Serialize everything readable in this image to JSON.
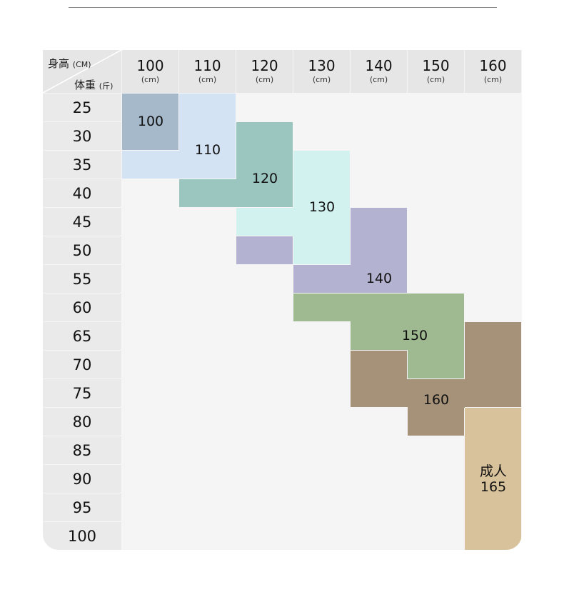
{
  "header": {
    "corner_height_label": "身高",
    "corner_height_unit": "(CM)",
    "corner_weight_label": "体重",
    "corner_weight_unit": "(斤)",
    "columns": [
      {
        "value": "100",
        "unit": "(cm)"
      },
      {
        "value": "110",
        "unit": "(cm)"
      },
      {
        "value": "120",
        "unit": "(cm)"
      },
      {
        "value": "130",
        "unit": "(cm)"
      },
      {
        "value": "140",
        "unit": "(cm)"
      },
      {
        "value": "150",
        "unit": "(cm)"
      },
      {
        "value": "160",
        "unit": "(cm)"
      }
    ]
  },
  "chart_data": {
    "type": "table",
    "x_heights_cm": [
      100,
      110,
      120,
      130,
      140,
      150,
      160
    ],
    "y_weights_jin": [
      25,
      30,
      35,
      40,
      45,
      50,
      55,
      60,
      65,
      70,
      75,
      80,
      85,
      90,
      95,
      100
    ],
    "sizes": [
      {
        "label": "100",
        "color": "#a5b9cb",
        "cells": [
          {
            "h": 100,
            "w": 25
          },
          {
            "h": 100,
            "w": 30
          }
        ]
      },
      {
        "label": "110",
        "color": "#d3e3f3",
        "cells": [
          {
            "h": 110,
            "w": 25
          },
          {
            "h": 110,
            "w": 30
          },
          {
            "h": 100,
            "w": 35
          },
          {
            "h": 110,
            "w": 35
          }
        ]
      },
      {
        "label": "120",
        "color": "#9bc5bf",
        "cells": [
          {
            "h": 120,
            "w": 30
          },
          {
            "h": 120,
            "w": 35
          },
          {
            "h": 110,
            "w": 40
          },
          {
            "h": 120,
            "w": 40
          }
        ]
      },
      {
        "label": "130",
        "color": "#d2f2ef",
        "cells": [
          {
            "h": 130,
            "w": 35
          },
          {
            "h": 130,
            "w": 40
          },
          {
            "h": 120,
            "w": 45
          },
          {
            "h": 130,
            "w": 45
          },
          {
            "h": 130,
            "w": 50
          }
        ]
      },
      {
        "label": "140",
        "color": "#b4b2d1",
        "cells": [
          {
            "h": 140,
            "w": 45
          },
          {
            "h": 120,
            "w": 50
          },
          {
            "h": 140,
            "w": 50
          },
          {
            "h": 130,
            "w": 55
          },
          {
            "h": 140,
            "w": 55
          }
        ]
      },
      {
        "label": "150",
        "color": "#9fba91",
        "cells": [
          {
            "h": 130,
            "w": 60
          },
          {
            "h": 140,
            "w": 60
          },
          {
            "h": 150,
            "w": 60
          },
          {
            "h": 140,
            "w": 65
          },
          {
            "h": 150,
            "w": 65
          },
          {
            "h": 150,
            "w": 70
          }
        ]
      },
      {
        "label": "160",
        "color": "#a69279",
        "cells": [
          {
            "h": 160,
            "w": 65
          },
          {
            "h": 140,
            "w": 70
          },
          {
            "h": 160,
            "w": 70
          },
          {
            "h": 140,
            "w": 75
          },
          {
            "h": 150,
            "w": 75
          },
          {
            "h": 160,
            "w": 75
          },
          {
            "h": 150,
            "w": 80
          }
        ]
      },
      {
        "label": "165",
        "prefix": "成人",
        "color": "#d8c29b",
        "cells": [
          {
            "h": 160,
            "w": 80
          },
          {
            "h": 160,
            "w": 85
          },
          {
            "h": 160,
            "w": 90
          },
          {
            "h": 160,
            "w": 95
          },
          {
            "h": 160,
            "w": 100
          }
        ]
      }
    ]
  }
}
